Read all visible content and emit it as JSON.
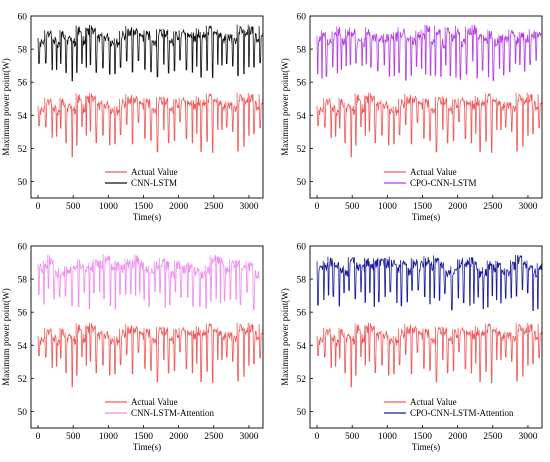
{
  "chart_data": [
    {
      "type": "line",
      "xlabel": "Time(s)",
      "ylabel": "Maximum power point(W)",
      "xlim": [
        -100,
        3200
      ],
      "ylim": [
        49,
        60
      ],
      "xticks": [
        0,
        500,
        1000,
        1500,
        2000,
        2500,
        3000
      ],
      "yticks": [
        50,
        52,
        54,
        56,
        58
      ],
      "legend_position": "bottom-center",
      "series": [
        {
          "name": "Actual Value",
          "color": "#f05a5a"
        },
        {
          "name": "CNN-LSTM",
          "color": "#111111"
        }
      ]
    },
    {
      "type": "line",
      "xlabel": "Time(s)",
      "ylabel": "Maximum power point(W)",
      "xlim": [
        -100,
        3200
      ],
      "ylim": [
        49,
        60
      ],
      "xticks": [
        0,
        500,
        1000,
        1500,
        2000,
        2500,
        3000
      ],
      "yticks": [
        50,
        52,
        54,
        56,
        58
      ],
      "legend_position": "bottom-center",
      "series": [
        {
          "name": "Actual Value",
          "color": "#f05a5a"
        },
        {
          "name": "CPO-CNN-LSTM",
          "color": "#b43de6"
        }
      ]
    },
    {
      "type": "line",
      "xlabel": "Time(s)",
      "ylabel": "Maximum power point(W)",
      "xlim": [
        -100,
        3200
      ],
      "ylim": [
        49,
        60
      ],
      "xticks": [
        0,
        500,
        1000,
        1500,
        2000,
        2500,
        3000
      ],
      "yticks": [
        50,
        52,
        54,
        56,
        58
      ],
      "legend_position": "bottom-center",
      "series": [
        {
          "name": "Actual Value",
          "color": "#f05a5a"
        },
        {
          "name": "CNN-LSTM-Attention",
          "color": "#f08cf0"
        }
      ]
    },
    {
      "type": "line",
      "xlabel": "Time(s)",
      "ylabel": "Maximum power point(W)",
      "xlim": [
        -100,
        3200
      ],
      "ylim": [
        49,
        60
      ],
      "xticks": [
        0,
        500,
        1000,
        1500,
        2000,
        2500,
        3000
      ],
      "yticks": [
        50,
        52,
        54,
        56,
        58
      ],
      "legend_position": "bottom-center",
      "series": [
        {
          "name": "Actual Value",
          "color": "#f05a5a"
        },
        {
          "name": "CPO-CNN-LSTM-Attention",
          "color": "#1a1a9c"
        }
      ]
    }
  ]
}
